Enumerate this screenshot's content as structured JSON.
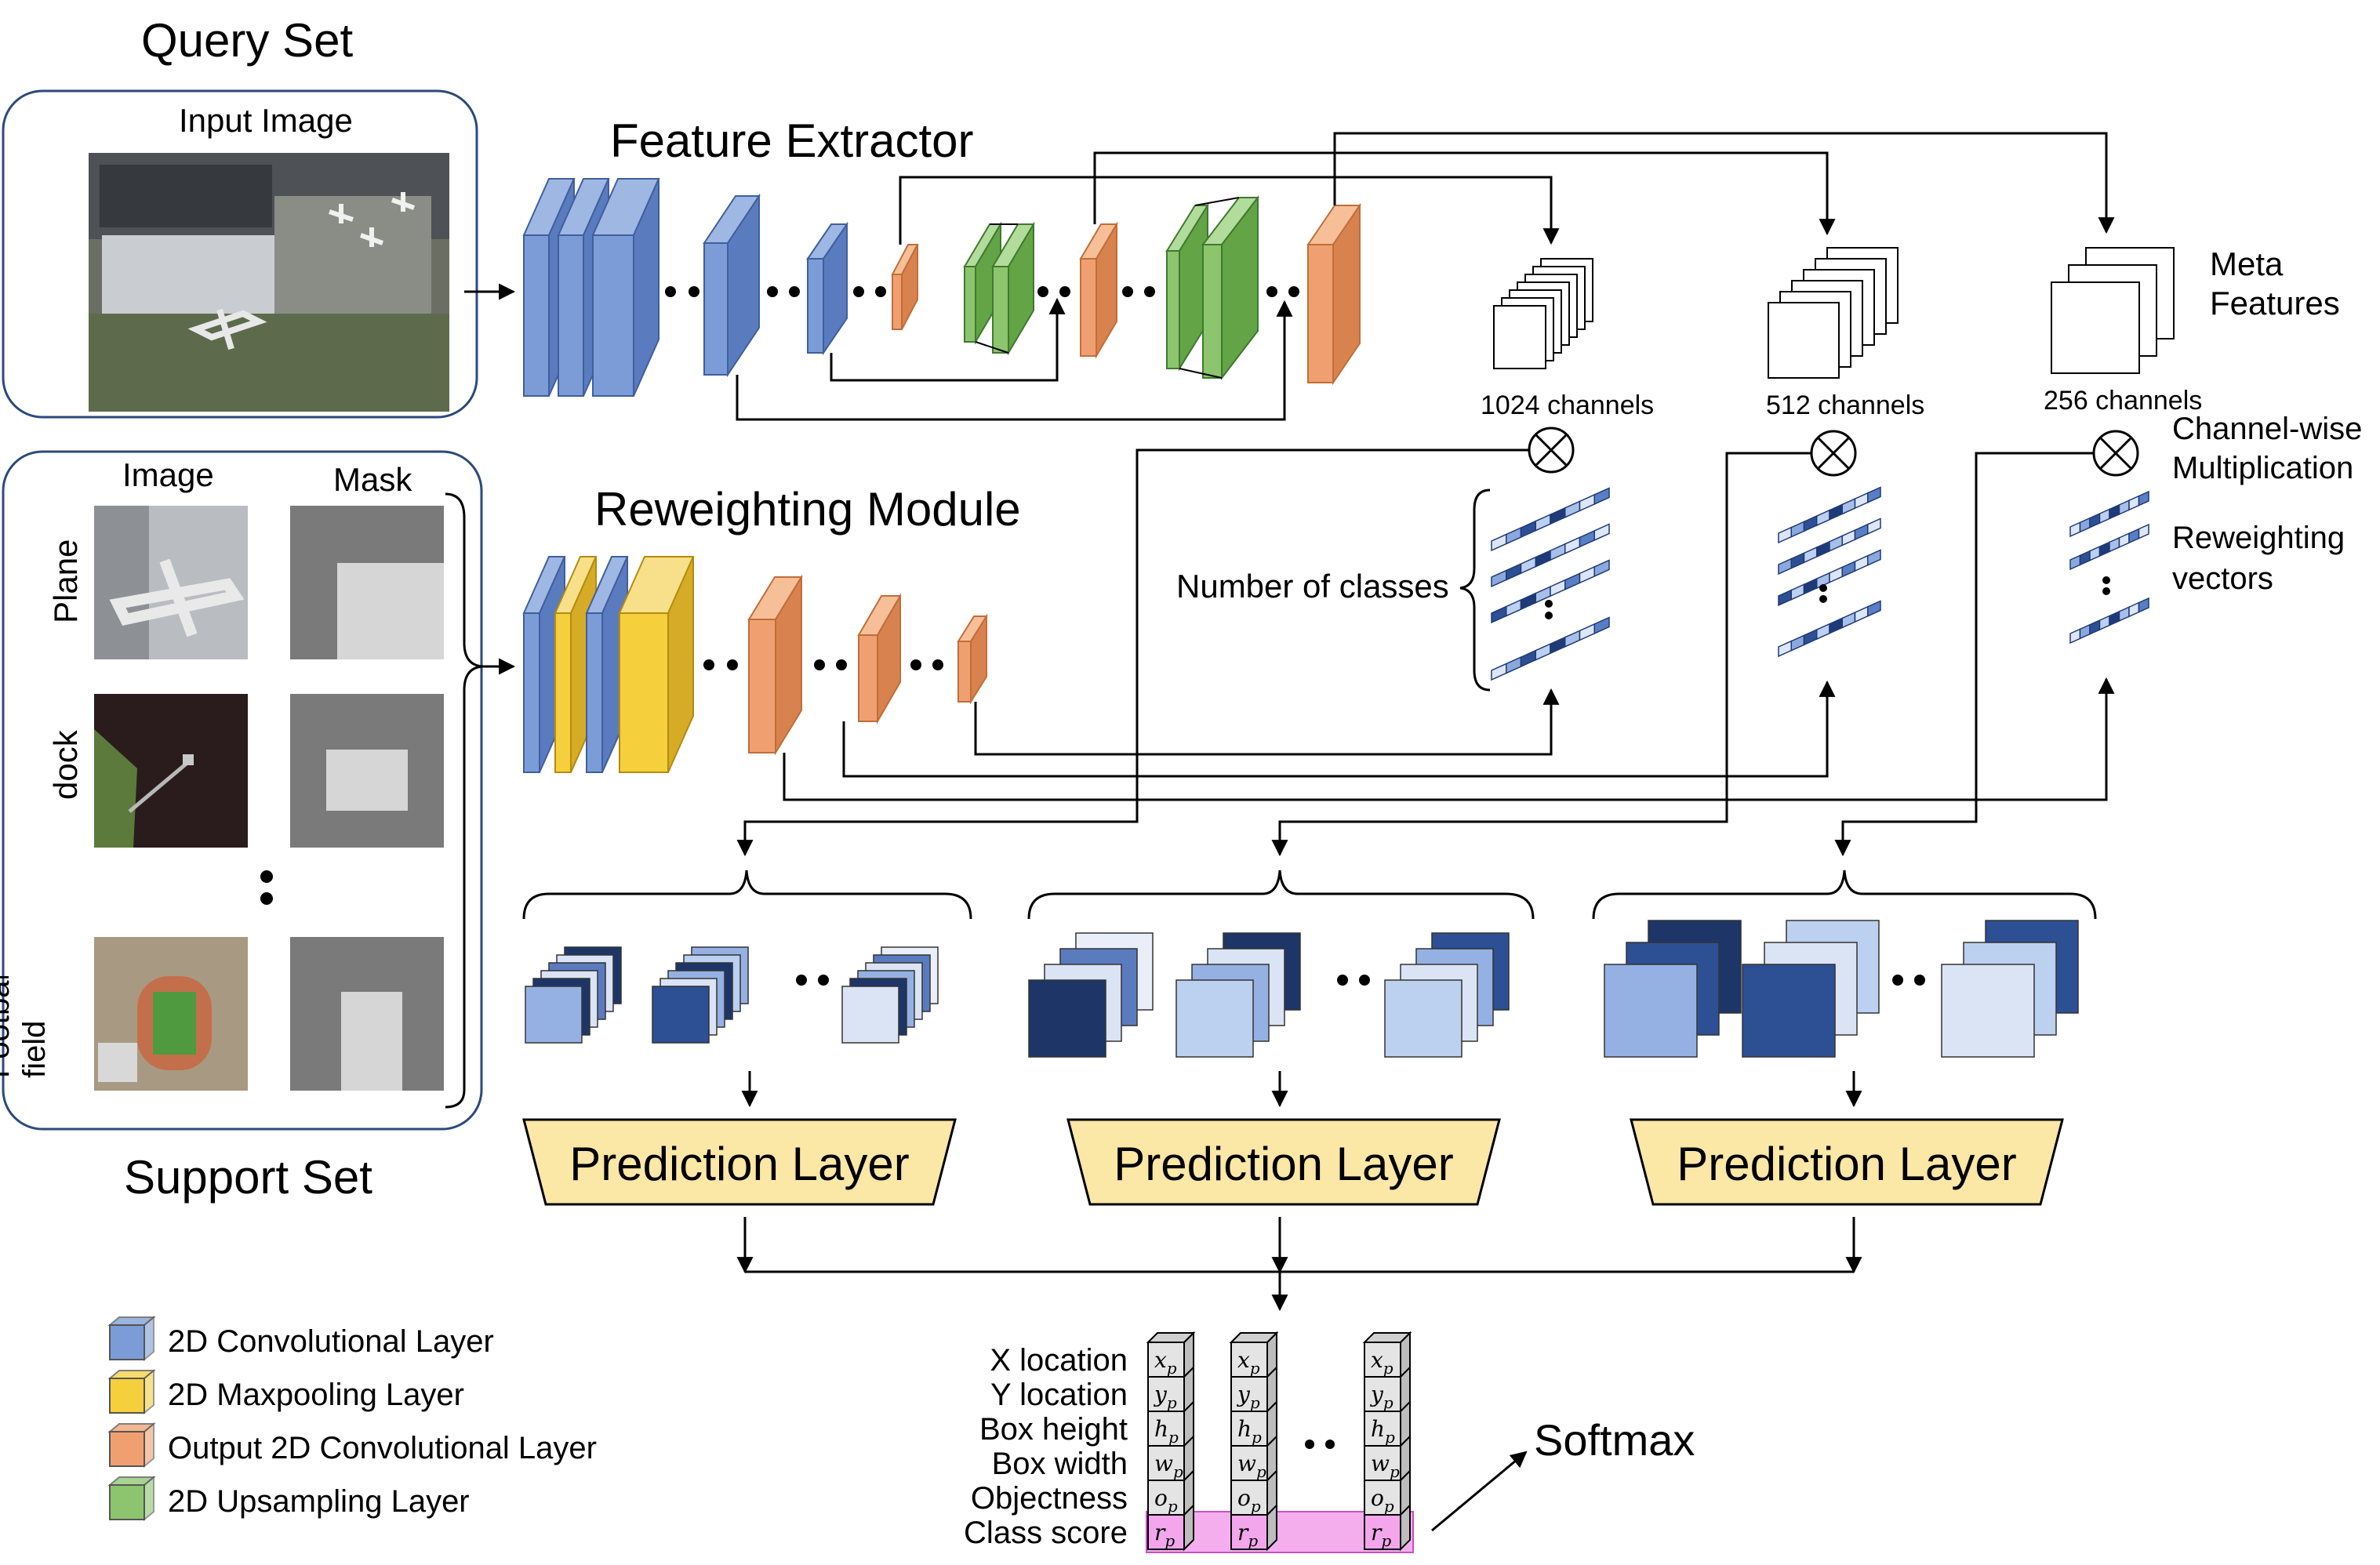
{
  "query_set": {
    "title": "Query Set",
    "input_label": "Input Image"
  },
  "support_set": {
    "title": "Support Set",
    "image_header": "Image",
    "mask_header": "Mask",
    "rows": [
      "Plane",
      "dock",
      "Football field"
    ]
  },
  "feature_extractor": {
    "title": "Feature Extractor",
    "outputs": [
      "1024 channels",
      "512 channels",
      "256 channels"
    ],
    "meta_label": "Meta Features"
  },
  "reweighting": {
    "title": "Reweighting Module",
    "num_classes_label": "Number of classes",
    "multiplication_label": "Channel-wise Multiplication",
    "vectors_label": "Reweighting vectors"
  },
  "prediction": {
    "label": "Prediction Layer"
  },
  "output": {
    "rows": [
      "X location",
      "Y location",
      "Box height",
      "Box width",
      "Objectness",
      "Class score"
    ],
    "symbols": [
      "x",
      "y",
      "h",
      "w",
      "o",
      "r"
    ],
    "subscript": "p",
    "softmax": "Softmax"
  },
  "legend": [
    {
      "label": "2D Convolutional Layer",
      "color": "#7b9cd6"
    },
    {
      "label": "2D Maxpooling Layer",
      "color": "#f5cf3c"
    },
    {
      "label": "Output 2D Convolutional Layer",
      "color": "#f0a070"
    },
    {
      "label": "2D Upsampling Layer",
      "color": "#8cc56e"
    }
  ],
  "colors": {
    "conv": "#7b9cd6",
    "conv_dark": "#5b7bbf",
    "pool": "#f5cf3c",
    "pool_dark": "#d6ab25",
    "out": "#f0a070",
    "out_dark": "#d8834f",
    "up": "#8cc56e",
    "up_dark": "#62a446",
    "highlight": "#f3a6ec"
  }
}
